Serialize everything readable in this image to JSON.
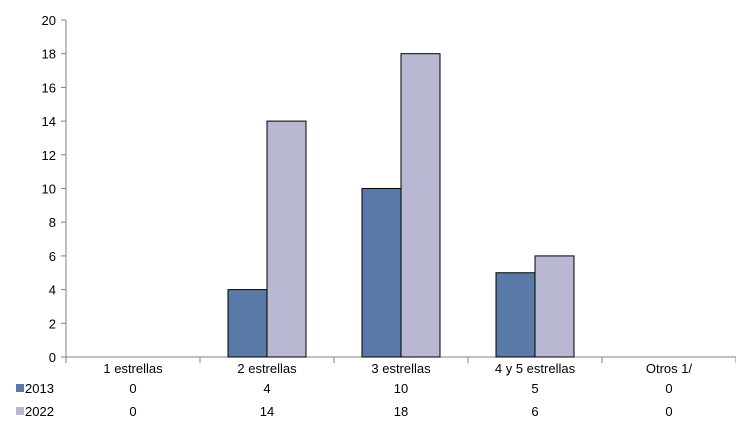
{
  "chart_data": {
    "type": "bar",
    "categories": [
      "1 estrellas",
      "2 estrellas",
      "3 estrellas",
      "4 y 5 estrellas",
      "Otros 1/"
    ],
    "series": [
      {
        "name": "2013",
        "values": [
          0,
          4,
          10,
          5,
          0
        ],
        "color": "#5b79a6"
      },
      {
        "name": "2022",
        "values": [
          0,
          14,
          18,
          6,
          0
        ],
        "color": "#b8b8d2"
      }
    ],
    "ylim": [
      0,
      20
    ],
    "yticks": [
      0,
      2,
      4,
      6,
      8,
      10,
      12,
      14,
      16,
      18,
      20
    ],
    "grid": false,
    "legend": "data-table-below",
    "title": "",
    "xlabel": "",
    "ylabel": ""
  }
}
